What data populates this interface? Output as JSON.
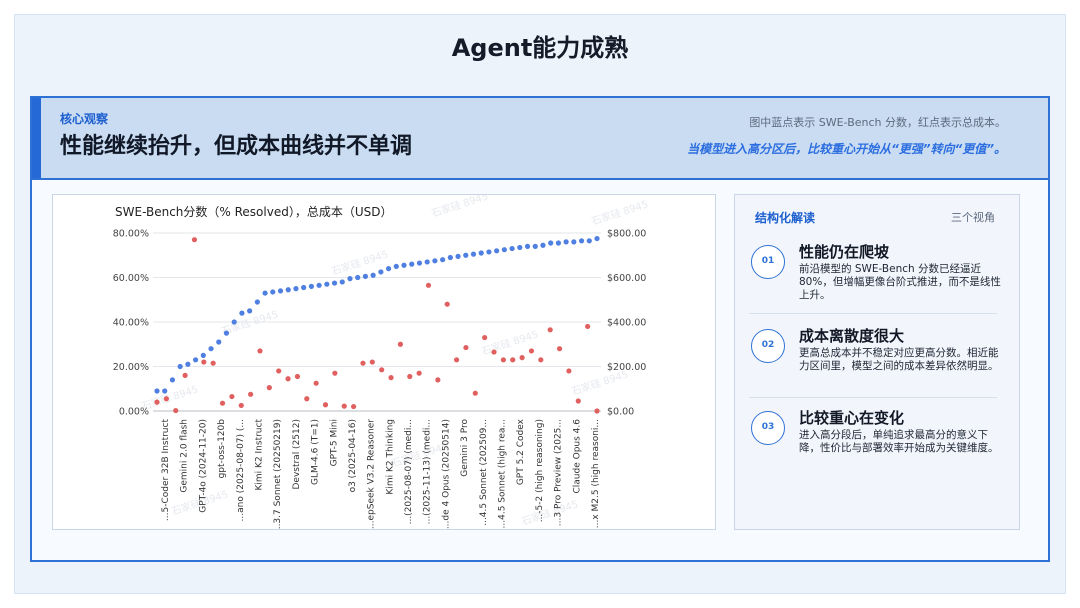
{
  "page": {
    "title": "Agent能力成熟"
  },
  "banner": {
    "kicker": "核心观察",
    "heading": "性能继续抬升，但成本曲线并不单调",
    "note": "图中蓝点表示 SWE-Bench 分数，红点表示总成本。",
    "emphasis": "当模型进入高分区后，比较重心开始从“更强”转向“更值”。"
  },
  "side": {
    "title": "结构化解读",
    "meta": "三个视角",
    "items": [
      {
        "num": "01",
        "title": "性能仍在爬坡",
        "body": "前沿模型的 SWE-Bench 分数已经逼近80%，但增幅更像台阶式推进，而不是线性上升。"
      },
      {
        "num": "02",
        "title": "成本离散度很大",
        "body": "更高总成本并不稳定对应更高分数。相近能力区间里，模型之间的成本差异依然明显。"
      },
      {
        "num": "03",
        "title": "比较重心在变化",
        "body": "进入高分段后，单纯追求最高分的意义下降，性价比与部署效率开始成为关键维度。"
      }
    ]
  },
  "chart_data": {
    "type": "scatter",
    "title": "SWE-Bench分数（% Resolved），总成本（USD）",
    "watermark": "石家硅 8945",
    "y_left": {
      "ticks": [
        "0.00%",
        "20.00%",
        "40.00%",
        "60.00%",
        "80.00%"
      ],
      "range": [
        0,
        80
      ]
    },
    "y_right": {
      "ticks": [
        "$0.00",
        "$200.00",
        "$400.00",
        "$600.00",
        "$800.00"
      ],
      "range": [
        0,
        800
      ]
    },
    "x_tick_labels": [
      "...5-Coder 32B Instruct",
      "Gemini 2.0 flash",
      "GPT-4o (2024-11-20)",
      "gpt-oss-120b",
      "...ano (2025-08-07) (...",
      "Kimi K2 Instruct",
      "...3.7 Sonnet (20250219)",
      "Devstral (2512)",
      "GLM-4.6 (T=1)",
      "GPT-5 Mini",
      "o3 (2025-04-16)",
      "...epSeek V3.2 Reasoner",
      "Kimi K2 Thinking",
      "...(2025-08-07) (medi...",
      "...(2025-11-13) (medi...",
      "...de 4 Opus (20250514)",
      "Gemini 3 Pro",
      "...4.5 Sonnet (202509...",
      "...4.5 Sonnet (high rea...",
      "GPT 5.2 Codex",
      "...-5-2 (high reasoning)",
      "...3 Pro Preview (2025...",
      "Claude Opus 4.6",
      "...x M2.5 (high reasoni..."
    ],
    "series": [
      {
        "name": "SWE-Bench分数",
        "color": "#4f7fe0",
        "axis": "left",
        "values": [
          9,
          9,
          14,
          20,
          21,
          23,
          25,
          28,
          31,
          35,
          40,
          44,
          45,
          49,
          53,
          53.5,
          54,
          54.5,
          55,
          55.5,
          56,
          56.5,
          57,
          57.5,
          58,
          59.5,
          60,
          60.5,
          61,
          62.5,
          64,
          65,
          65.5,
          66,
          66.5,
          67,
          67.5,
          68,
          69,
          69.5,
          70,
          70.5,
          71,
          71.5,
          72,
          72.5,
          73,
          73.5,
          74,
          74,
          74.5,
          75.5,
          75.5,
          76,
          76,
          76.5,
          76.5,
          77.5
        ]
      },
      {
        "name": "总成本",
        "color": "#e06060",
        "axis": "right",
        "values": [
          40,
          55,
          2,
          160,
          770,
          220,
          215,
          35,
          65,
          25,
          75,
          270,
          105,
          180,
          145,
          155,
          55,
          125,
          28,
          170,
          22,
          20,
          215,
          220,
          185,
          150,
          300,
          155,
          170,
          565,
          140,
          480,
          230,
          285,
          80,
          330,
          265,
          230,
          230,
          240,
          270,
          230,
          365,
          280,
          180,
          45,
          380,
          0
        ]
      }
    ]
  }
}
